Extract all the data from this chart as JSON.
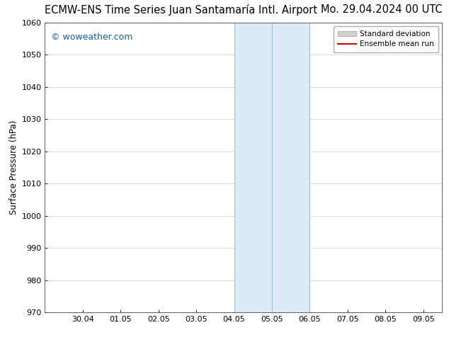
{
  "title_left": "ECMW-ENS Time Series Juan Santamaría Intl. Airport",
  "title_right": "Mo. 29.04.2024 00 UTC",
  "ylabel": "Surface Pressure (hPa)",
  "ylim": [
    970,
    1060
  ],
  "yticks": [
    970,
    980,
    990,
    1000,
    1010,
    1020,
    1030,
    1040,
    1050,
    1060
  ],
  "xtick_labels": [
    "30.04",
    "01.05",
    "02.05",
    "03.05",
    "04.05",
    "05.05",
    "06.05",
    "07.05",
    "08.05",
    "09.05"
  ],
  "xtick_positions": [
    1,
    2,
    3,
    4,
    5,
    6,
    7,
    8,
    9,
    10
  ],
  "xmin": 0,
  "xmax": 10.5,
  "shaded_region_start": 5,
  "shaded_region_mid": 6,
  "shaded_region_end": 7,
  "shaded_color": "#daeaf7",
  "shaded_edge_color": "#9bbfd6",
  "watermark_text": "© woweather.com",
  "watermark_color": "#1a5fa8",
  "legend_std_label": "Standard deviation",
  "legend_ens_label": "Ensemble mean run",
  "legend_std_facecolor": "#d0d0d0",
  "legend_std_edgecolor": "#999999",
  "legend_ens_color": "#cc0000",
  "background_color": "#ffffff",
  "grid_color": "#cccccc",
  "title_fontsize": 10.5,
  "ylabel_fontsize": 8.5,
  "tick_fontsize": 8,
  "watermark_fontsize": 9,
  "legend_fontsize": 7.5
}
